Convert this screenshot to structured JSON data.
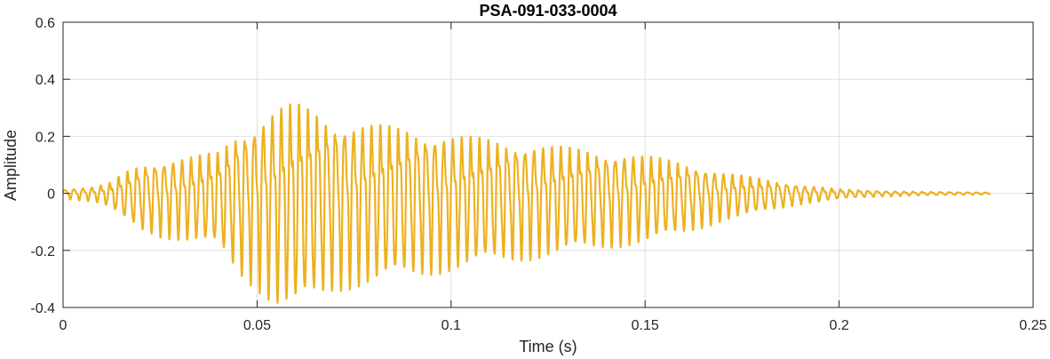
{
  "chart_data": {
    "type": "line",
    "title": "PSA-091-033-0004",
    "xlabel": "Time (s)",
    "ylabel": "Amplitude",
    "xlim": [
      0,
      0.25
    ],
    "ylim": [
      -0.4,
      0.6
    ],
    "xticks": [
      0,
      0.05,
      0.1,
      0.15,
      0.2,
      0.25
    ],
    "xtick_labels": [
      "0",
      "0.05",
      "0.1",
      "0.15",
      "0.2",
      "0.25"
    ],
    "yticks": [
      -0.4,
      -0.2,
      0,
      0.2,
      0.4,
      0.6
    ],
    "ytick_labels": [
      "-0.4",
      "-0.2",
      "0",
      "0.2",
      "0.4",
      "0.6"
    ],
    "grid": true,
    "line_color": "#EDB120",
    "series": [
      {
        "x": [
          0,
          0.004,
          0.008,
          0.012,
          0.016,
          0.02,
          0.025,
          0.03,
          0.035,
          0.04,
          0.045,
          0.05,
          0.055,
          0.06,
          0.065,
          0.07,
          0.075,
          0.08,
          0.09,
          0.1,
          0.11,
          0.12,
          0.13,
          0.14,
          0.15,
          0.16,
          0.17,
          0.18,
          0.19,
          0.2,
          0.21,
          0.22,
          0.23,
          0.239
        ],
        "envelope": [
          0.02,
          0.025,
          0.03,
          0.05,
          0.1,
          0.14,
          0.16,
          0.17,
          0.18,
          0.2,
          0.3,
          0.35,
          0.41,
          0.43,
          0.4,
          0.36,
          0.34,
          0.33,
          0.31,
          0.28,
          0.26,
          0.24,
          0.22,
          0.2,
          0.18,
          0.15,
          0.1,
          0.07,
          0.04,
          0.02,
          0.012,
          0.008,
          0.006,
          0.004
        ],
        "frequency_hz": 430
      }
    ]
  }
}
